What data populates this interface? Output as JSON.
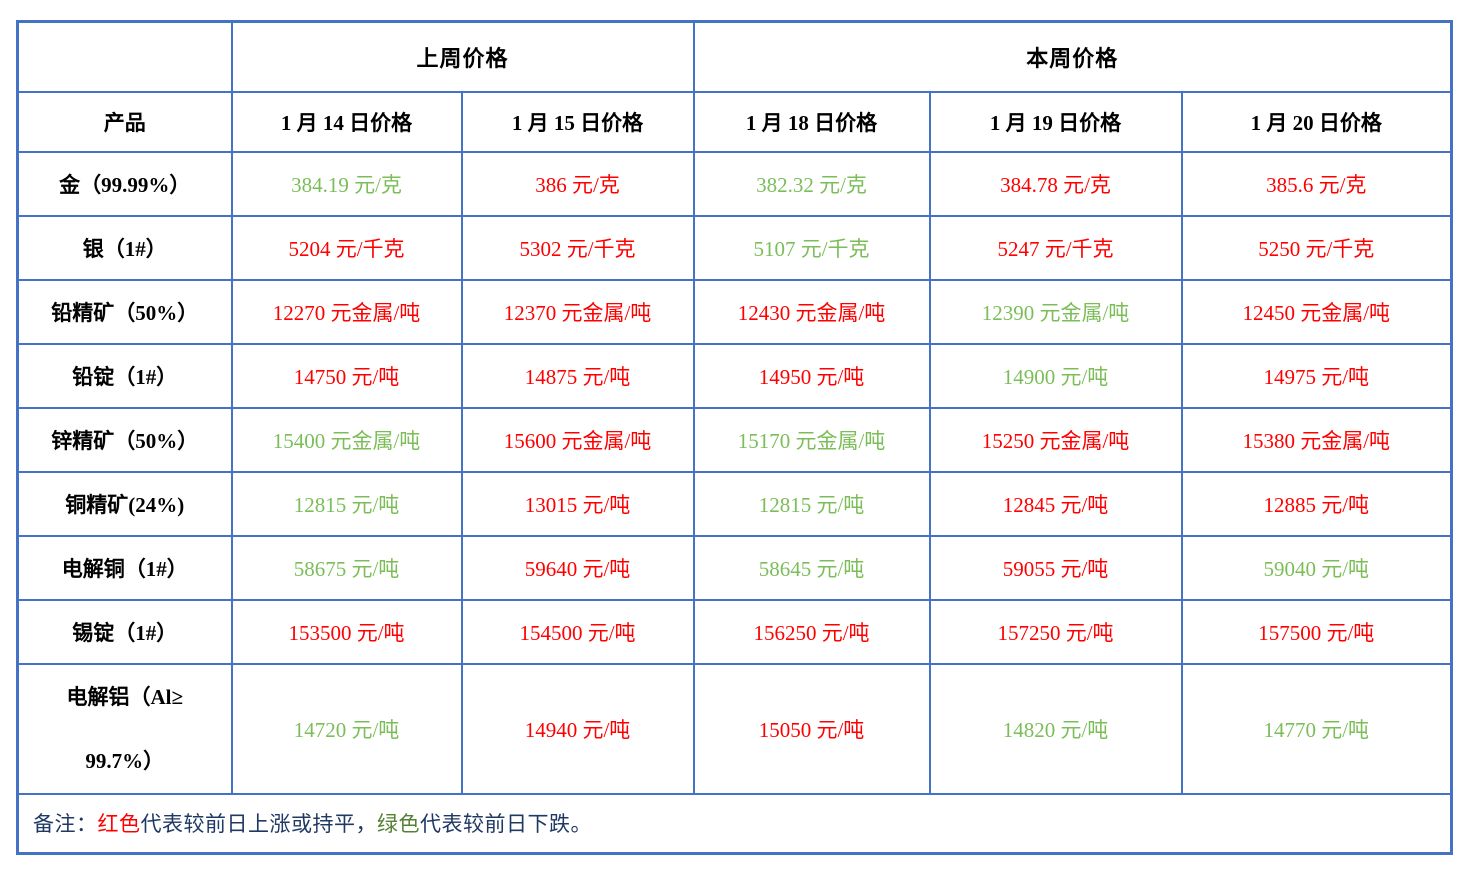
{
  "table": {
    "group_headers": {
      "corner": "",
      "last_week": "上周价格",
      "this_week": "本周价格"
    },
    "columns": [
      "产品",
      "1 月 14 日价格",
      "1 月 15 日价格",
      "1 月 18 日价格",
      "1 月 19 日价格",
      "1 月 20 日价格"
    ],
    "rows": [
      {
        "product": "金（99.99%）",
        "values": [
          "384.19 元/克",
          "386 元/克",
          "382.32 元/克",
          "384.78 元/克",
          "385.6 元/克"
        ],
        "trends": [
          "green",
          "red",
          "green",
          "red",
          "red"
        ]
      },
      {
        "product": "银（1#）",
        "values": [
          "5204 元/千克",
          "5302 元/千克",
          "5107 元/千克",
          "5247 元/千克",
          "5250 元/千克"
        ],
        "trends": [
          "red",
          "red",
          "green",
          "red",
          "red"
        ]
      },
      {
        "product": "铅精矿（50%）",
        "values": [
          "12270 元金属/吨",
          "12370 元金属/吨",
          "12430 元金属/吨",
          "12390 元金属/吨",
          "12450 元金属/吨"
        ],
        "trends": [
          "red",
          "red",
          "red",
          "green",
          "red"
        ]
      },
      {
        "product": "铅锭（1#）",
        "values": [
          "14750 元/吨",
          "14875 元/吨",
          "14950 元/吨",
          "14900 元/吨",
          "14975 元/吨"
        ],
        "trends": [
          "red",
          "red",
          "red",
          "green",
          "red"
        ]
      },
      {
        "product": "锌精矿（50%）",
        "values": [
          "15400 元金属/吨",
          "15600 元金属/吨",
          "15170 元金属/吨",
          "15250 元金属/吨",
          "15380 元金属/吨"
        ],
        "trends": [
          "green",
          "red",
          "green",
          "red",
          "red"
        ]
      },
      {
        "product": "铜精矿(24%)",
        "values": [
          "12815 元/吨",
          "13015 元/吨",
          "12815 元/吨",
          "12845 元/吨",
          "12885 元/吨"
        ],
        "trends": [
          "green",
          "red",
          "green",
          "red",
          "red"
        ]
      },
      {
        "product": "电解铜（1#）",
        "values": [
          "58675 元/吨",
          "59640 元/吨",
          "58645 元/吨",
          "59055 元/吨",
          "59040 元/吨"
        ],
        "trends": [
          "green",
          "red",
          "green",
          "red",
          "green"
        ]
      },
      {
        "product": "锡锭（1#）",
        "values": [
          "153500 元/吨",
          "154500 元/吨",
          "156250 元/吨",
          "157250 元/吨",
          "157500 元/吨"
        ],
        "trends": [
          "red",
          "red",
          "red",
          "red",
          "red"
        ]
      },
      {
        "product": "电解铝（Al≥99.7%）",
        "product_lines": [
          "电解铝（Al≥",
          "99.7%）"
        ],
        "tall": true,
        "values": [
          "14720 元/吨",
          "14940 元/吨",
          "15050 元/吨",
          "14820 元/吨",
          "14770 元/吨"
        ],
        "trends": [
          "green",
          "red",
          "red",
          "green",
          "green"
        ]
      }
    ],
    "note": {
      "prefix": "备注：",
      "red_label": "红色",
      "red_desc": "代表较前日上涨或持平，",
      "green_label": "绿色",
      "green_desc": "代表较前日下跌。"
    }
  },
  "colors": {
    "border_blue": "#4472C4",
    "price_up_red": "#FF0000",
    "price_down_green": "#7BBE58",
    "note_text_navy": "#1F3864",
    "note_green": "#538135"
  }
}
